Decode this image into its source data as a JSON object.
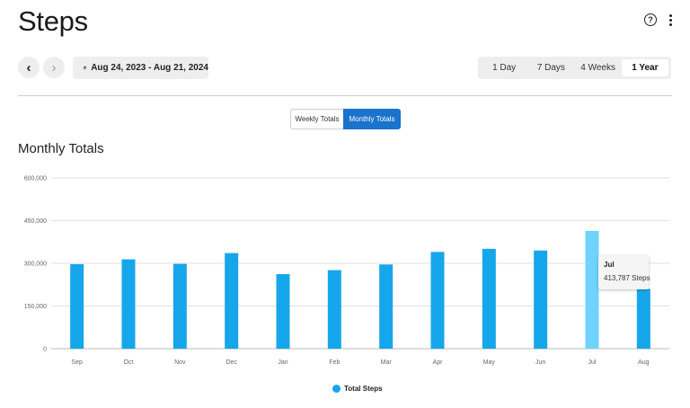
{
  "header": {
    "title": "Steps",
    "help_icon": "help-icon",
    "menu_icon": "kebab-menu-icon"
  },
  "date_nav": {
    "prev_icon": "chevron-left-icon",
    "next_icon": "chevron-right-icon",
    "calendar_icon": "calendar-icon",
    "range_label": "Aug 24, 2023 - Aug 21, 2024"
  },
  "range_tabs": [
    {
      "label": "1 Day",
      "active": false
    },
    {
      "label": "7 Days",
      "active": false
    },
    {
      "label": "4 Weeks",
      "active": false
    },
    {
      "label": "1 Year",
      "active": true
    }
  ],
  "view_toggle": {
    "weekly_label": "Weekly Totals",
    "monthly_label": "Monthly Totals",
    "selected": "monthly"
  },
  "section_title": "Monthly Totals",
  "colors": {
    "bar": "#16a6eb",
    "bar_highlight": "#6fd3ff",
    "toggle_active": "#1a73cc"
  },
  "chart_data": {
    "type": "bar",
    "categories": [
      "Sep",
      "Oct",
      "Nov",
      "Dec",
      "Jan",
      "Feb",
      "Mar",
      "Apr",
      "May",
      "Jun",
      "Jul",
      "Aug"
    ],
    "series": [
      {
        "name": "Total Steps",
        "values": [
          297000,
          314000,
          298000,
          336000,
          262000,
          276000,
          296000,
          340000,
          351000,
          345000,
          413787,
          210000
        ]
      }
    ],
    "ylim": [
      0,
      600000
    ],
    "yticks": [
      0,
      150000,
      300000,
      450000,
      600000
    ],
    "ytick_labels": [
      "0",
      "150,000",
      "300,000",
      "450,000",
      "600,000"
    ],
    "highlight_index": 10,
    "legend_position": "bottom",
    "grid": true
  },
  "tooltip": {
    "title": "Jul",
    "value": "413,787 Steps"
  },
  "legend": {
    "label": "Total Steps"
  }
}
